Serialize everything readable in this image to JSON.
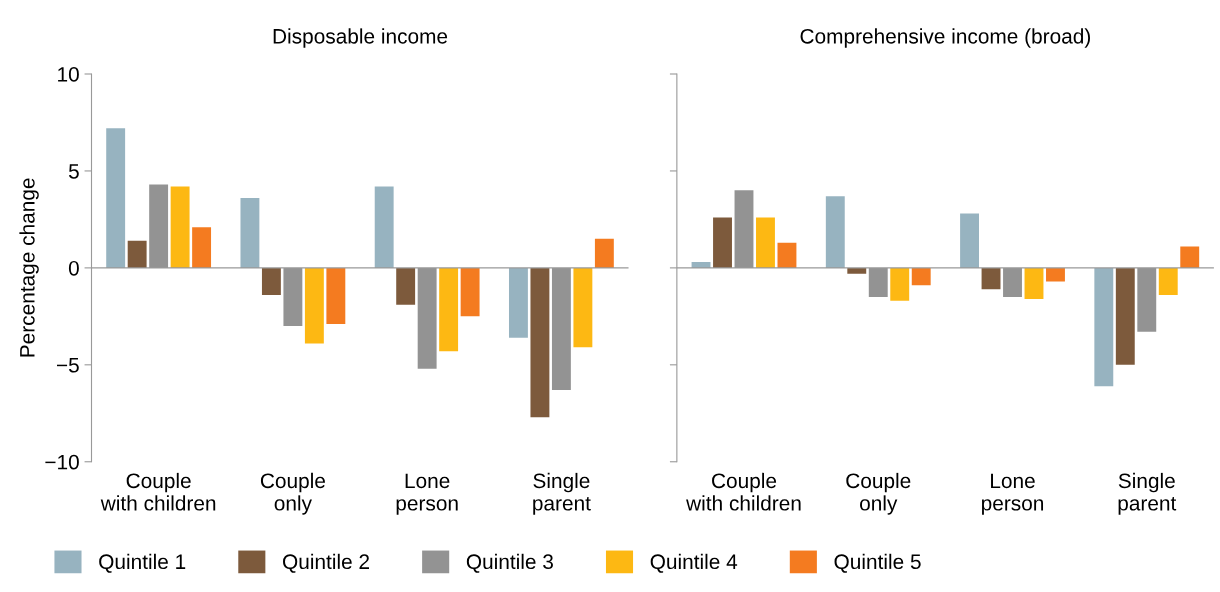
{
  "chart_data": [
    {
      "type": "bar",
      "title": "Disposable income",
      "ylabel": "Percentage change",
      "categories": [
        "Couple\nwith children",
        "Couple\nonly",
        "Lone\nperson",
        "Single\nparent"
      ],
      "series": [
        {
          "name": "Quintile 1",
          "color": "#97b3c0",
          "values": [
            7.2,
            3.6,
            4.2,
            -3.6
          ]
        },
        {
          "name": "Quintile 2",
          "color": "#7d5a3c",
          "values": [
            1.4,
            -1.4,
            -1.9,
            -7.7
          ]
        },
        {
          "name": "Quintile 3",
          "color": "#939393",
          "values": [
            4.3,
            -3.0,
            -5.2,
            -6.3
          ]
        },
        {
          "name": "Quintile 4",
          "color": "#fdb813",
          "values": [
            4.2,
            -3.9,
            -4.3,
            -4.1
          ]
        },
        {
          "name": "Quintile 5",
          "color": "#f47b20",
          "values": [
            2.1,
            -2.9,
            -2.5,
            1.5
          ]
        }
      ],
      "ylim": [
        -10,
        10
      ],
      "yticks": [
        {
          "value": -10,
          "label": "−10"
        },
        {
          "value": -5,
          "label": "−5"
        },
        0,
        5,
        10
      ],
      "grid": false,
      "legend": "bottom",
      "ref_lines": [
        {
          "axis": "y",
          "value": 0,
          "color": "#999999"
        }
      ]
    },
    {
      "type": "bar",
      "title": "Comprehensive income (broad)",
      "categories": [
        "Couple\nwith children",
        "Couple\nonly",
        "Lone\nperson",
        "Single\nparent"
      ],
      "series": [
        {
          "color": "#97b3c0",
          "values": [
            0.3,
            3.7,
            2.8,
            -6.1
          ]
        },
        {
          "color": "#7d5a3c",
          "values": [
            2.6,
            -0.3,
            -1.1,
            -5.0
          ]
        },
        {
          "color": "#939393",
          "values": [
            4.0,
            -1.5,
            -1.5,
            -3.3
          ]
        },
        {
          "color": "#fdb813",
          "values": [
            2.6,
            -1.7,
            -1.6,
            -1.4
          ]
        },
        {
          "color": "#f47b20",
          "values": [
            1.3,
            -0.9,
            -0.7,
            1.1
          ]
        }
      ],
      "ylim": [
        -10,
        10
      ],
      "yticks": [
        {
          "value": -10,
          "label": null
        },
        {
          "value": -5,
          "label": null
        },
        {
          "value": 0,
          "label": null
        },
        {
          "value": 5,
          "label": null
        },
        {
          "value": 10,
          "label": null
        }
      ],
      "grid": false,
      "tick_labels": "x",
      "ref_lines": [
        {
          "axis": "y",
          "value": 0,
          "color": "#999999"
        }
      ]
    }
  ]
}
